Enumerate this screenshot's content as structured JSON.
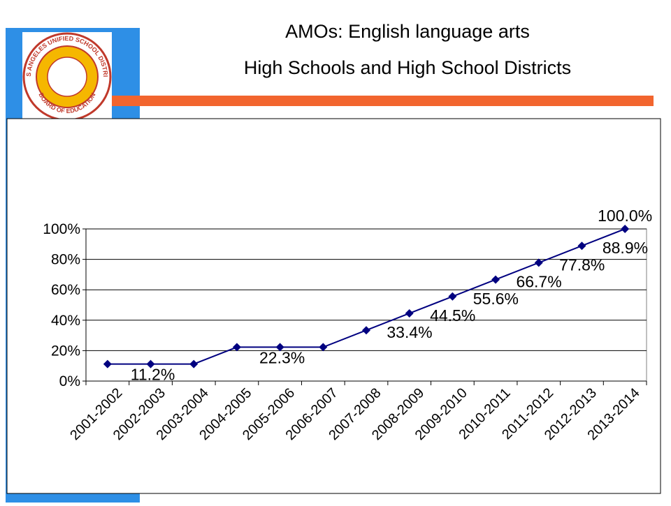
{
  "header": {
    "title_line1": "AMOs:  English language arts",
    "title_line2": "High Schools and High School Districts"
  },
  "logo": {
    "top_text": "LOS ANGELES UNIFIED SCHOOL DISTRICT",
    "bottom_text": "BOARD OF EDUCATION"
  },
  "chart_data": {
    "type": "line",
    "categories": [
      "2001-2002",
      "2002-2003",
      "2003-2004",
      "2004-2005",
      "2005-2006",
      "2006-2007",
      "2007-2008",
      "2008-2009",
      "2009-2010",
      "2010-2011",
      "2011-2012",
      "2012-2013",
      "2013-2014"
    ],
    "series": [
      {
        "color": "#000080",
        "values": [
          11.2,
          11.2,
          11.2,
          22.3,
          22.3,
          22.3,
          33.4,
          44.5,
          55.6,
          66.7,
          77.8,
          88.9,
          100.0
        ],
        "value_labels": [
          null,
          "11.2%",
          null,
          null,
          "22.3%",
          null,
          "33.4%",
          "44.5%",
          "55.6%",
          "66.7%",
          "77.8%",
          "88.9%",
          "100.0%"
        ]
      }
    ],
    "ylim": [
      0,
      100
    ],
    "yticks": [
      {
        "value": 0,
        "label": "0%"
      },
      {
        "value": 20,
        "label": "20%"
      },
      {
        "value": 40,
        "label": "40%"
      },
      {
        "value": 60,
        "label": "60%"
      },
      {
        "value": 80,
        "label": "80%"
      },
      {
        "value": 100,
        "label": "100%"
      }
    ],
    "grid": true
  }
}
